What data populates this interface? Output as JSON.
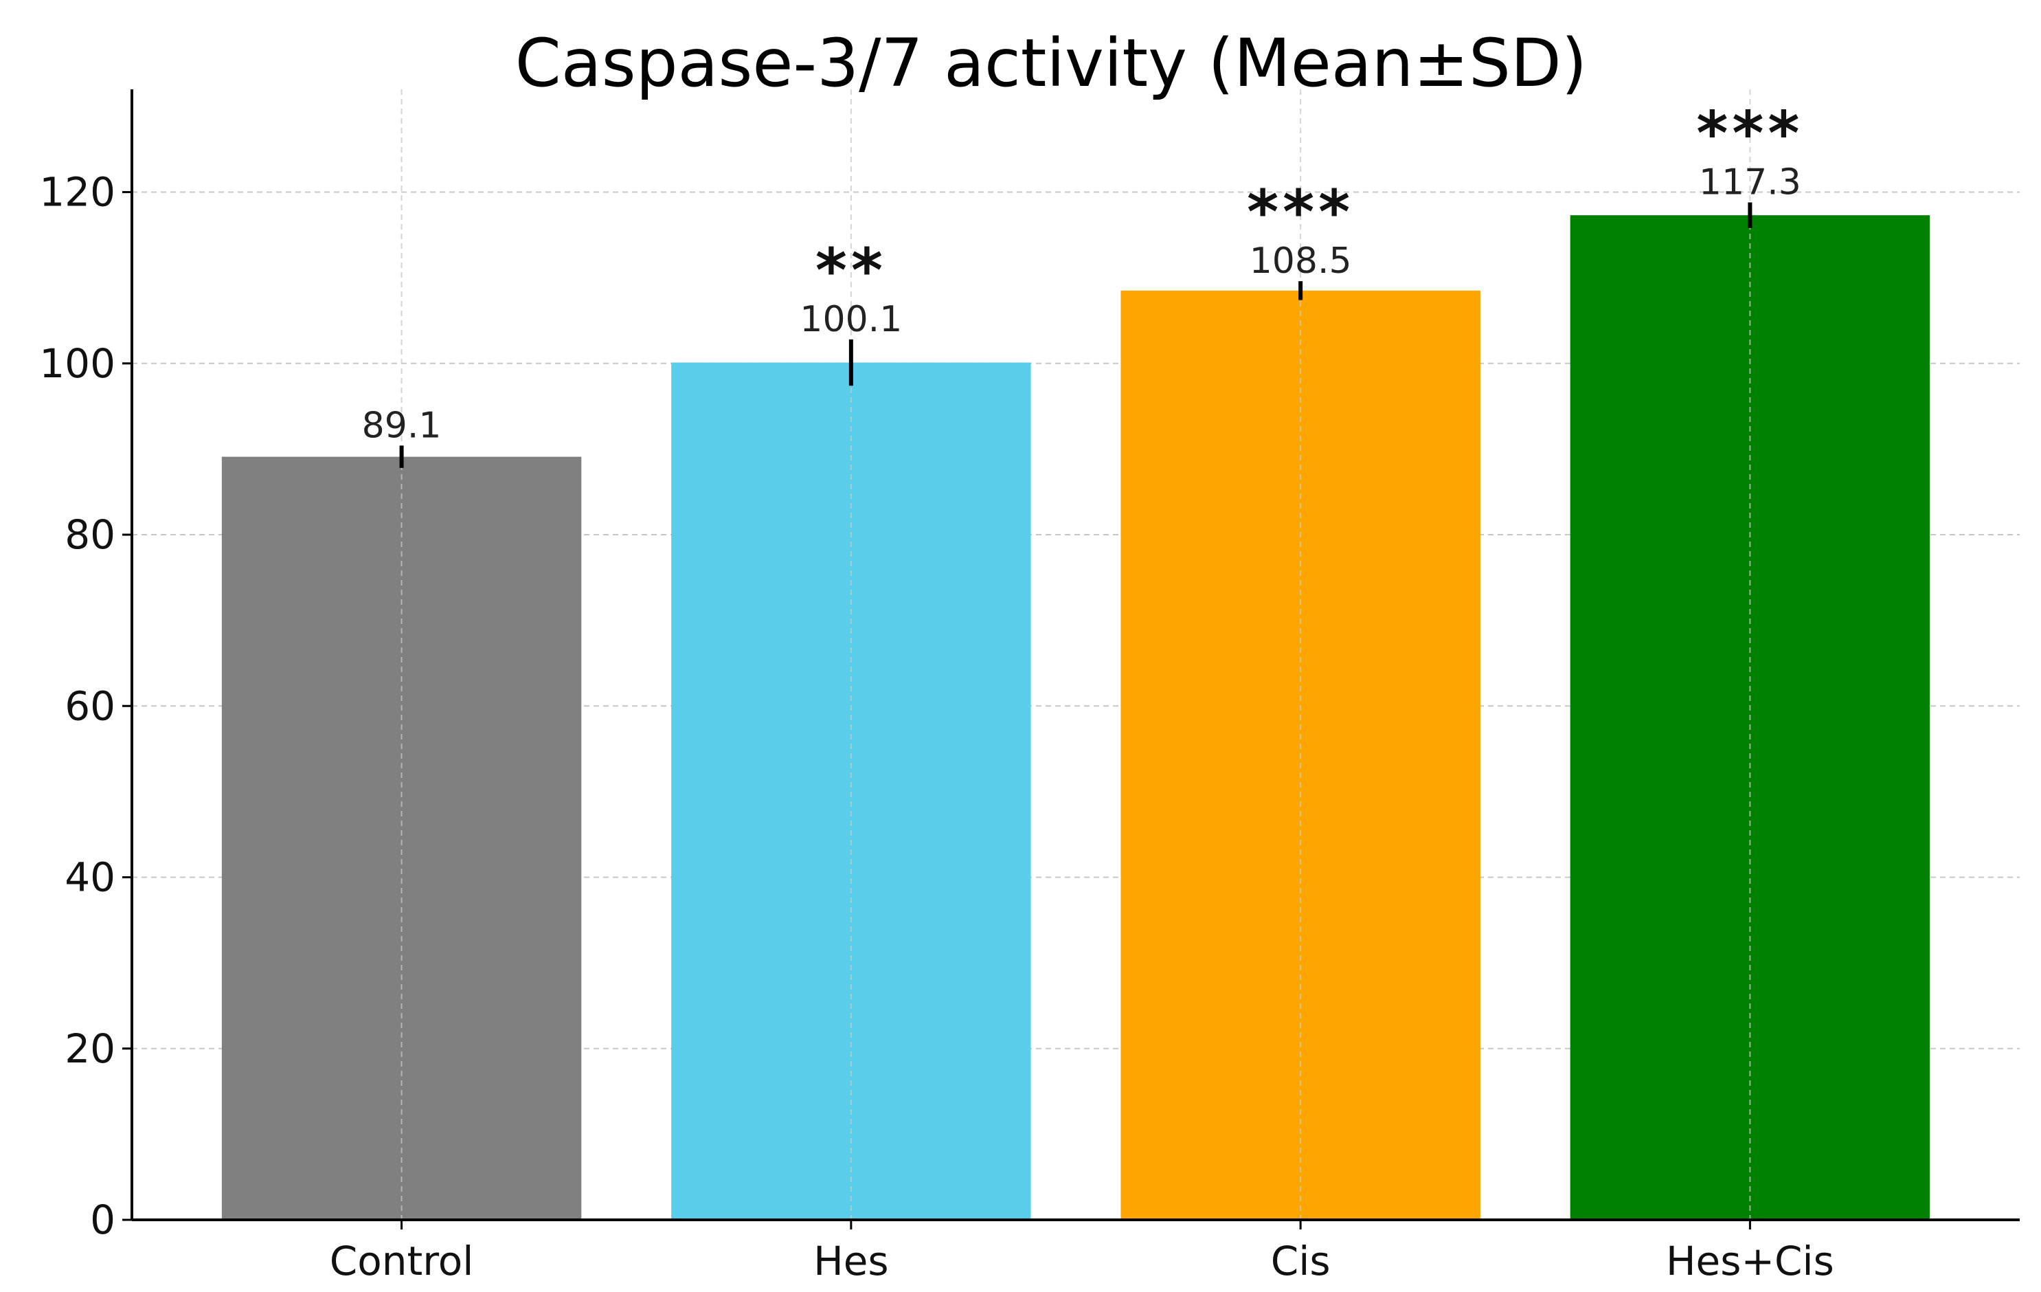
{
  "chart_data": {
    "type": "bar",
    "title": "Caspase-3/7 activity (Mean±SD)",
    "xlabel": "",
    "ylabel": "",
    "categories": [
      "Control",
      "Hes",
      "Cis",
      "Hes+Cis"
    ],
    "values": [
      89.1,
      100.1,
      108.5,
      117.3
    ],
    "value_labels": [
      "89.1",
      "100.1",
      "108.5",
      "117.3"
    ],
    "errors": [
      1.3,
      2.7,
      1.1,
      1.5
    ],
    "significance": [
      "",
      "**",
      "***",
      "***"
    ],
    "colors": [
      "#808080",
      "#5ACDEB",
      "#FFA500",
      "#008000"
    ],
    "ylim": [
      0,
      132
    ],
    "yticks": [
      0,
      20,
      40,
      60,
      80,
      100,
      120
    ],
    "grid": true
  }
}
